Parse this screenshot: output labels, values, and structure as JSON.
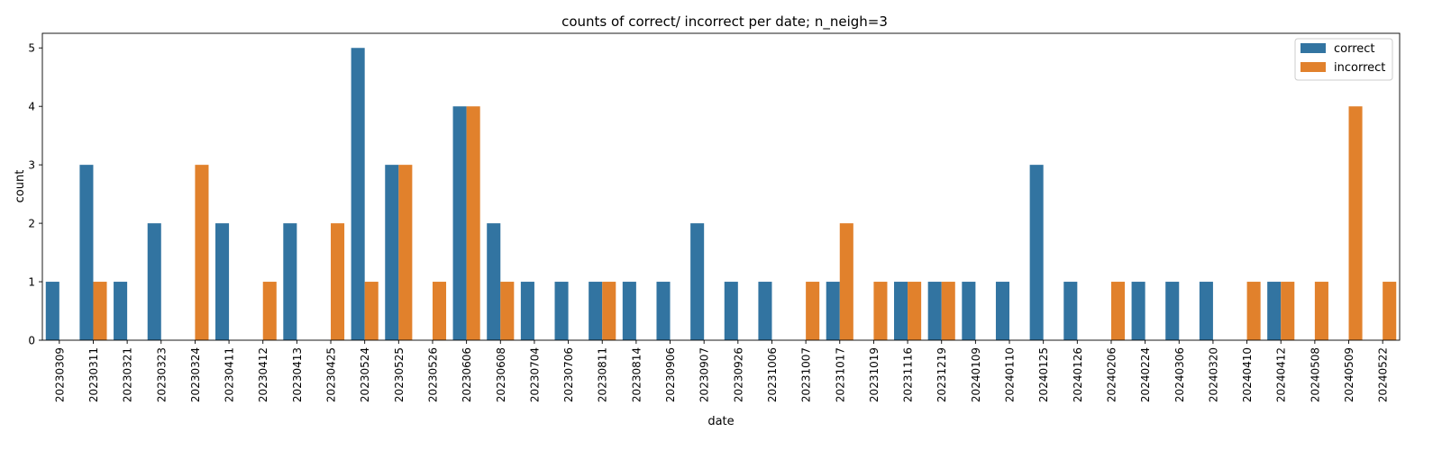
{
  "chart_data": {
    "type": "bar",
    "title": "counts of correct/ incorrect per date; n_neigh=3",
    "xlabel": "date",
    "ylabel": "count",
    "ylim": [
      0,
      5.25
    ],
    "yticks": [
      0,
      1,
      2,
      3,
      4,
      5
    ],
    "grid": false,
    "legend_position": "top-right",
    "categories": [
      "20230309",
      "20230311",
      "20230321",
      "20230323",
      "20230324",
      "20230411",
      "20230412",
      "20230413",
      "20230425",
      "20230524",
      "20230525",
      "20230526",
      "20230606",
      "20230608",
      "20230704",
      "20230706",
      "20230811",
      "20230814",
      "20230906",
      "20230907",
      "20230926",
      "20231006",
      "20231007",
      "20231017",
      "20231019",
      "20231116",
      "20231219",
      "20240109",
      "20240110",
      "20240125",
      "20240126",
      "20240206",
      "20240224",
      "20240306",
      "20240320",
      "20240410",
      "20240412",
      "20240508",
      "20240509",
      "20240522"
    ],
    "series": [
      {
        "name": "correct",
        "color": "#3274a1",
        "values": [
          1,
          3,
          1,
          2,
          0,
          2,
          0,
          2,
          0,
          5,
          3,
          0,
          4,
          2,
          1,
          1,
          1,
          1,
          1,
          2,
          1,
          1,
          0,
          1,
          0,
          1,
          1,
          1,
          1,
          3,
          1,
          0,
          1,
          1,
          1,
          0,
          1,
          0,
          0,
          0
        ]
      },
      {
        "name": "incorrect",
        "color": "#e1812c",
        "values": [
          0,
          1,
          0,
          0,
          3,
          0,
          1,
          0,
          2,
          1,
          3,
          1,
          4,
          1,
          0,
          0,
          1,
          0,
          0,
          0,
          0,
          0,
          1,
          2,
          1,
          1,
          1,
          0,
          0,
          0,
          0,
          1,
          0,
          0,
          0,
          1,
          1,
          1,
          4,
          1
        ]
      }
    ]
  }
}
